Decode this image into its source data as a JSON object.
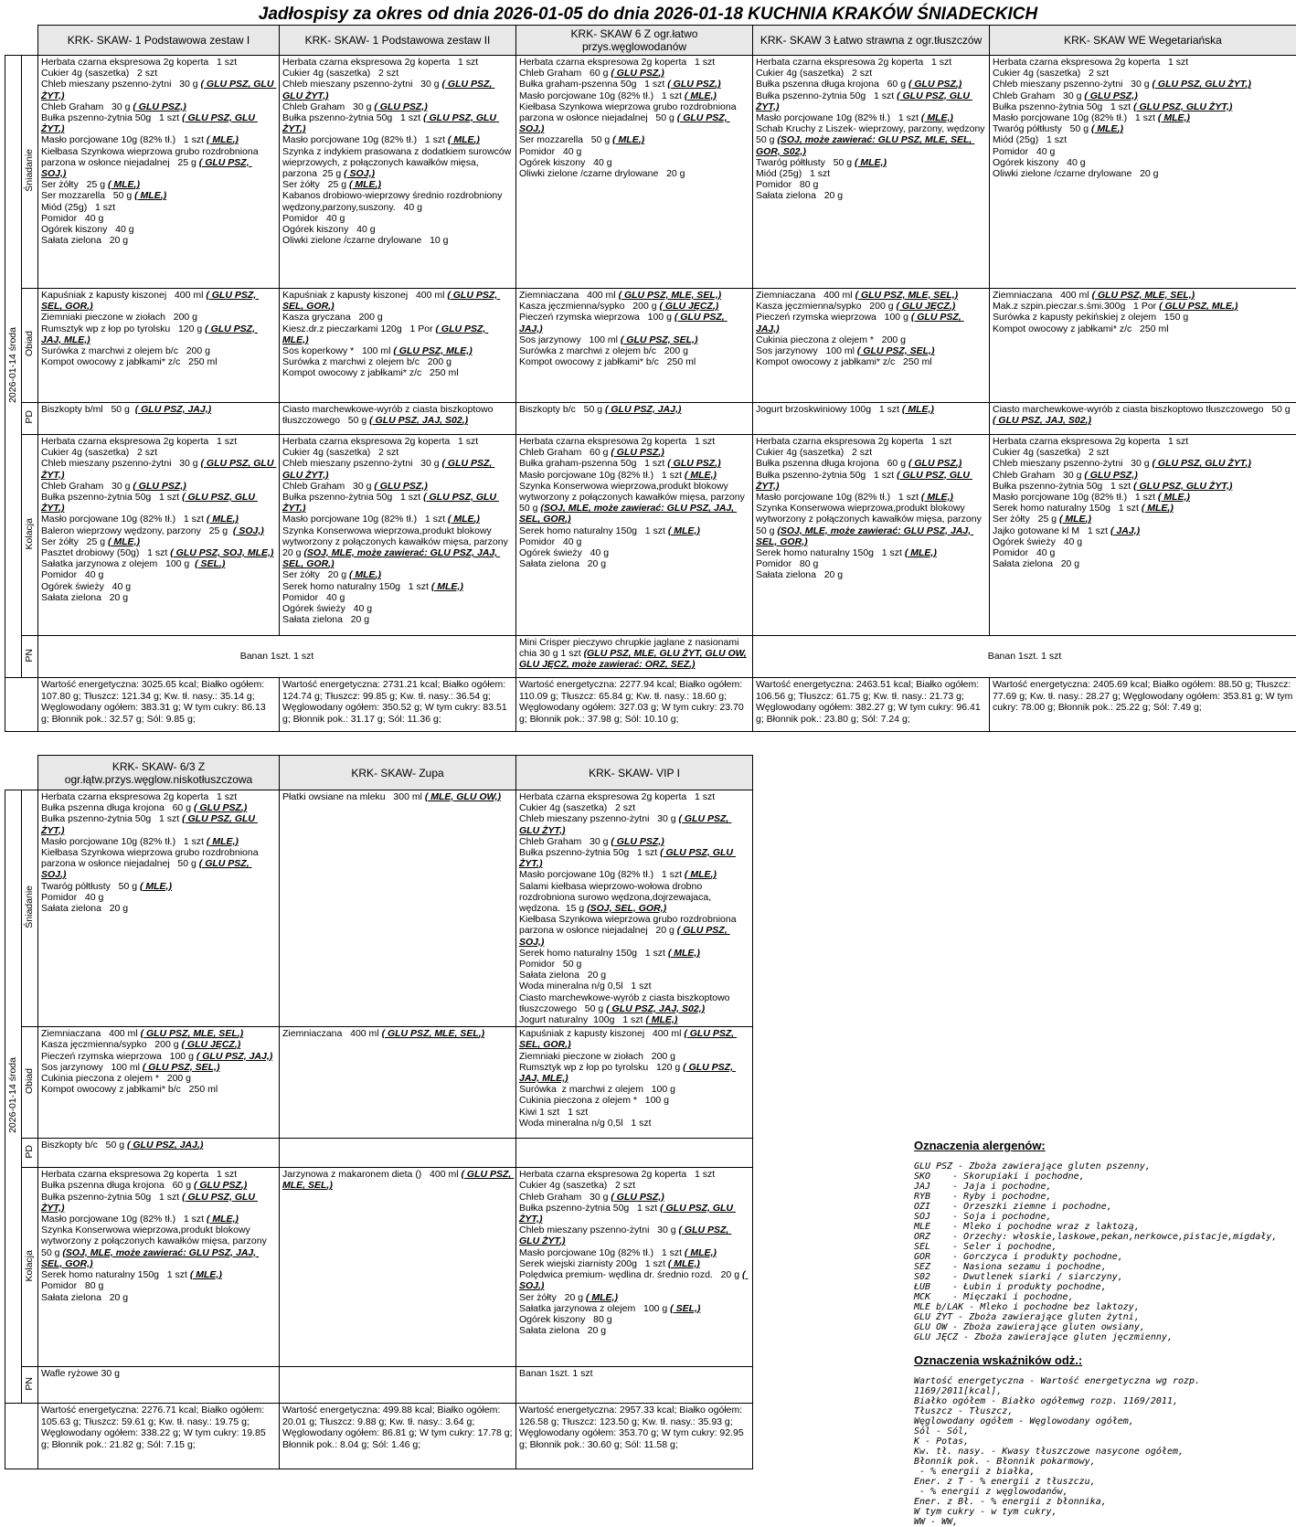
{
  "title": "Jadłospisy  za okres od dnia 2026-01-05 do dnia 2026-01-18 KUCHNIA KRAKÓW ŚNIADECKICH",
  "date_label": "2026-01-14 środa",
  "meals": {
    "breakfast": "Śniadanie",
    "lunch": "Obiad",
    "pd": "PD",
    "dinner": "Kolacja",
    "pn": "PN"
  },
  "table1": {
    "headers": [
      "KRK- SKAW- 1 Podstawowa zestaw I",
      "KRK- SKAW- 1 Podstawowa zestaw II",
      "KRK- SKAW 6 Z ogr.łatwo przys.węglowodanów",
      "KRK- SKAW 3 Łatwo strawna z ogr.tłuszczów",
      "KRK- SKAW WE Wegetariańska"
    ],
    "breakfast": [
      [
        "Herbata czarna ekspresowa 2g koperta   1 szt",
        "Cukier 4g (saszetka)   2 szt",
        "Chleb mieszany pszenno-żytni   30 g ( GLU PSZ, GLU ŻYT,)",
        "Chleb Graham   30 g ( GLU PSZ,)",
        "Bułka pszenno-żytnia 50g   1 szt ( GLU PSZ, GLU ŻYT,)",
        "Masło porcjowane 10g (82% tł.)   1 szt ( MLE,)",
        "Kiełbasa Szynkowa wieprzowa grubo rozdrobniona parzona w osłonce niejadalnej   25 g ( GLU PSZ, SOJ,)",
        "Ser żółty   25 g ( MLE,)",
        "Ser mozzarella   50 g ( MLE,)",
        "Miód (25g)   1 szt",
        "Pomidor   40 g",
        "Ogórek kiszony   40 g",
        "Sałata zielona   20 g"
      ],
      [
        "Herbata czarna ekspresowa 2g koperta   1 szt",
        "Cukier 4g (saszetka)   2 szt",
        "Chleb mieszany pszenno-żytni   30 g ( GLU PSZ, GLU ŻYT,)",
        "Chleb Graham   30 g ( GLU PSZ,)",
        "Bułka pszenno-żytnia 50g   1 szt ( GLU PSZ, GLU ŻYT,)",
        "Masło porcjowane 10g (82% tł.)   1 szt ( MLE,)",
        "Szynka z indykiem prasowana z dodatkiem surowców wieprzowych, z połączonych kawałków mięsa, parzona  25 g ( SOJ,)",
        "Ser żółty   25 g ( MLE,)",
        "Kabanos drobiowo-wieprzowy średnio rozdrobniony wędzony,parzony,suszony.   40 g",
        "Pomidor   40 g",
        "Ogórek kiszony   40 g",
        "Oliwki zielone /czarne drylowane   10 g"
      ],
      [
        "Herbata czarna ekspresowa 2g koperta   1 szt",
        "Chleb Graham   60 g ( GLU PSZ,)",
        "Bułka graham-pszenna 50g   1 szt ( GLU PSZ,)",
        "Masło porcjowane 10g (82% tł.)   1 szt ( MLE,)",
        "Kiełbasa Szynkowa wieprzowa grubo rozdrobniona parzona w osłonce niejadalnej   50 g ( GLU PSZ, SOJ,)",
        "Ser mozzarella   50 g ( MLE,)",
        "Pomidor   40 g",
        "Ogórek kiszony   40 g",
        "Oliwki zielone /czarne drylowane   20 g"
      ],
      [
        "Herbata czarna ekspresowa 2g koperta   1 szt",
        "Cukier 4g (saszetka)   2 szt",
        "Bułka pszenna długa krojona   60 g ( GLU PSZ,)",
        "Bułka pszenno-żytnia 50g   1 szt ( GLU PSZ, GLU ŻYT,)",
        "Masło porcjowane 10g (82% tł.)   1 szt ( MLE,)",
        "Schab Kruchy z Liszek- wieprzowy, parzony, wędzony  50 g (SOJ, może zawierać: GLU PSZ, MLE, SEL, GOR, S02,)",
        "Twaróg półtłusty   50 g ( MLE,)",
        "Miód (25g)   1 szt",
        "Pomidor   80 g",
        "Sałata zielona   20 g"
      ],
      [
        "Herbata czarna ekspresowa 2g koperta   1 szt",
        "Cukier 4g (saszetka)   2 szt",
        "Chleb mieszany pszenno-żytni   30 g ( GLU PSZ, GLU ŻYT,)",
        "Chleb Graham   30 g ( GLU PSZ,)",
        "Bułka pszenno-żytnia 50g   1 szt ( GLU PSZ, GLU ŻYT,)",
        "Masło porcjowane 10g (82% tł.)   1 szt ( MLE,)",
        "Twaróg półtłusty   50 g ( MLE,)",
        "Miód (25g)   1 szt",
        "Pomidor   40 g",
        "Ogórek kiszony   40 g",
        "Oliwki zielone /czarne drylowane   20 g"
      ]
    ],
    "lunch": [
      [
        "Kapuśniak z kapusty kiszonej   400 ml ( GLU PSZ, SEL, GOR,)",
        "Ziemniaki pieczone w ziołach   200 g",
        "Rumsztyk wp z łop po tyrolsku   120 g ( GLU PSZ, JAJ, MLE,)",
        "Surówka z marchwi z olejem b/c   200 g",
        "Kompot owocowy z jabłkami* z/c   250 ml"
      ],
      [
        "Kapuśniak z kapusty kiszonej   400 ml ( GLU PSZ, SEL, GOR,)",
        "Kasza gryczana   200 g",
        "Kiesz.dr.z pieczarkami 120g   1 Por ( GLU PSZ, MLE,)",
        "Sos koperkowy *   100 ml ( GLU PSZ, MLE,)",
        "Surówka z marchwi z olejem b/c   200 g",
        "Kompot owocowy z jabłkami* z/c   250 ml"
      ],
      [
        "Ziemniaczana   400 ml ( GLU PSZ, MLE, SEL,)",
        "Kasza jęczmienna/sypko   200 g ( GLU JĘCZ,)",
        "Pieczeń rzymska wieprzowa   100 g ( GLU PSZ, JAJ,)",
        "Sos jarzynowy   100 ml ( GLU PSZ, SEL,)",
        "Surówka z marchwi z olejem b/c   200 g",
        "Kompot owocowy z jabłkami* b/c   250 ml"
      ],
      [
        "Ziemniaczana   400 ml ( GLU PSZ, MLE, SEL,)",
        "Kasza jęczmienna/sypko   200 g ( GLU JĘCZ,)",
        "Pieczeń rzymska wieprzowa   100 g ( GLU PSZ, JAJ,)",
        "Cukinia pieczona z olejem *   200 g",
        "Sos jarzynowy   100 ml ( GLU PSZ, SEL,)",
        "Kompot owocowy z jabłkami* z/c   250 ml"
      ],
      [
        "Ziemniaczana   400 ml ( GLU PSZ, MLE, SEL,)",
        "Mak.z szpin.pieczar.s.śmi.300g   1 Por ( GLU PSZ, MLE,)",
        "Surówka z kapusty pekińskiej z olejem   150 g",
        "Kompot owocowy z jabłkami* z/c   250 ml"
      ]
    ],
    "pd": [
      [
        "Biszkopty b/ml   50 g  ( GLU PSZ, JAJ,)"
      ],
      [
        "Ciasto marchewkowe-wyrób z ciasta biszkoptowo tłuszczowego   50 g ( GLU PSZ, JAJ, S02,)"
      ],
      [
        "Biszkopty b/c   50 g ( GLU PSZ, JAJ,)"
      ],
      [
        "Jogurt brzoskwiniowy 100g   1 szt ( MLE,)"
      ],
      [
        "Ciasto marchewkowe-wyrób z ciasta biszkoptowo tłuszczowego   50 g ( GLU PSZ, JAJ, S02,)"
      ]
    ],
    "dinner": [
      [
        "Herbata czarna ekspresowa 2g koperta   1 szt",
        "Cukier 4g (saszetka)   2 szt",
        "Chleb mieszany pszenno-żytni   30 g ( GLU PSZ, GLU ŻYT,)",
        "Chleb Graham   30 g ( GLU PSZ,)",
        "Bułka pszenno-żytnia 50g   1 szt ( GLU PSZ, GLU ŻYT,)",
        "Masło porcjowane 10g (82% tł.)   1 szt ( MLE,)",
        "Baleron wieprzowy wędzony, parzony   25 g  ( SOJ,)",
        "Ser żółty   25 g ( MLE,)",
        "Pasztet drobiowy (50g)   1 szt ( GLU PSZ, SOJ, MLE,)",
        "Sałatka jarzynowa z olejem   100 g  ( SEL,)",
        "Pomidor   40 g",
        "Ogórek świeży   40 g",
        "Sałata zielona   20 g"
      ],
      [
        "Herbata czarna ekspresowa 2g koperta   1 szt",
        "Cukier 4g (saszetka)   2 szt",
        "Chleb mieszany pszenno-żytni   30 g ( GLU PSZ, GLU ŻYT,)",
        "Chleb Graham   30 g ( GLU PSZ,)",
        "Bułka pszenno-żytnia 50g   1 szt ( GLU PSZ, GLU ŻYT,)",
        "Masło porcjowane 10g (82% tł.)   1 szt ( MLE,)",
        "Szynka Konserwowa wieprzowa,produkt blokowy wytworzony z połączonych kawałków mięsa, parzony 20 g (SOJ, MLE, może zawierać: GLU PSZ, JAJ, SEL, GOR,)",
        "Ser żółty   20 g ( MLE,)",
        "Serek homo naturalny 150g   1 szt ( MLE,)",
        "Pomidor   40 g",
        "Ogórek świeży   40 g",
        "Sałata zielona   20 g"
      ],
      [
        "Herbata czarna ekspresowa 2g koperta   1 szt",
        "Chleb Graham   60 g ( GLU PSZ,)",
        "Bułka graham-pszenna 50g   1 szt ( GLU PSZ,)",
        "Masło porcjowane 10g (82% tł.)   1 szt ( MLE,)",
        "Szynka Konserwowa wieprzowa,produkt blokowy wytworzony z połączonych kawałków mięsa, parzony 50 g (SOJ, MLE, może zawierać: GLU PSZ, JAJ, SEL, GOR,)",
        "Serek homo naturalny 150g   1 szt ( MLE,)",
        "Pomidor   40 g",
        "Ogórek świeży   40 g",
        "Sałata zielona   20 g"
      ],
      [
        "Herbata czarna ekspresowa 2g koperta   1 szt",
        "Cukier 4g (saszetka)   2 szt",
        "Bułka pszenna długa krojona   60 g ( GLU PSZ,)",
        "Bułka pszenno-żytnia 50g   1 szt ( GLU PSZ, GLU ŻYT,)",
        "Masło porcjowane 10g (82% tł.)   1 szt ( MLE,)",
        "Szynka Konserwowa wieprzowa,produkt blokowy wytworzony z połączonych kawałków mięsa, parzony 50 g (SOJ, MLE, może zawierać: GLU PSZ, JAJ, SEL, GOR,)",
        "Serek homo naturalny 150g   1 szt ( MLE,)",
        "Pomidor   80 g",
        "Sałata zielona   20 g"
      ],
      [
        "Herbata czarna ekspresowa 2g koperta   1 szt",
        "Cukier 4g (saszetka)   2 szt",
        "Chleb mieszany pszenno-żytni   30 g ( GLU PSZ, GLU ŻYT,)",
        "Chleb Graham   30 g ( GLU PSZ,)",
        "Bułka pszenno-żytnia 50g   1 szt ( GLU PSZ, GLU ŻYT,)",
        "Masło porcjowane 10g (82% tł.)   1 szt ( MLE,)",
        "Serek homo naturalny 150g   1 szt ( MLE,)",
        "Ser żółty   25 g ( MLE,)",
        "Jajko gotowane kl M   1 szt ( JAJ,)",
        "Ogórek świeży   40 g",
        "Pomidor   40 g",
        "Sałata zielona   20 g"
      ]
    ],
    "pn": {
      "left": "Banan 1szt.   1 szt",
      "middle": "Mini Crisper pieczywo chrupkie jaglane z nasionami chia 30 g   1 szt (GLU PSZ, MLE, GLU ŻYT, GLU OW, GLU JĘCZ, może zawierać: ORZ, SEZ,)",
      "right": "Banan 1szt.   1 szt"
    },
    "energy": [
      "Wartość energetyczna: 3025.65 kcal; Białko ogółem: 107.80 g; Tłuszcz: 121.34 g; Kw. tł. nasy.: 35.14 g; Węglowodany ogółem: 383.31 g; W tym cukry: 86.13 g; Błonnik pok.: 32.57 g; Sól: 9.85 g;",
      "Wartość energetyczna: 2731.21 kcal; Białko ogółem: 124.74 g; Tłuszcz: 99.85 g; Kw. tł. nasy.: 36.54 g; Węglowodany ogółem: 350.52 g; W tym cukry: 83.51 g; Błonnik pok.: 31.17 g; Sól: 11.36 g;",
      "Wartość energetyczna: 2277.94 kcal; Białko ogółem: 110.09 g; Tłuszcz: 65.84 g; Kw. tł. nasy.: 18.60 g; Węglowodany ogółem: 327.03 g; W tym cukry: 23.70 g; Błonnik pok.: 37.98 g; Sól: 10.10 g;",
      "Wartość energetyczna: 2463.51 kcal; Białko ogółem: 106.56 g; Tłuszcz: 61.75 g; Kw. tł. nasy.: 21.73 g; Węglowodany ogółem: 382.27 g; W tym cukry: 96.41 g; Błonnik pok.: 23.80 g; Sól: 7.24 g;",
      "Wartość energetyczna: 2405.69 kcal; Białko ogółem: 88.50 g; Tłuszcz: 77.69 g; Kw. tł. nasy.: 28.27 g; Węglowodany ogółem: 353.81 g; W tym cukry: 78.00 g; Błonnik pok.: 25.22 g; Sól: 7.49 g;"
    ]
  },
  "table2": {
    "headers": [
      "KRK- SKAW- 6/3 Z\nogr.łątw.przys.węglow.niskotłuszczowa",
      "KRK- SKAW- Zupa",
      "KRK- SKAW- VIP I"
    ],
    "breakfast": [
      [
        "Herbata czarna ekspresowa 2g koperta   1 szt",
        "Bułka pszenna długa krojona   60 g ( GLU PSZ,)",
        "Bułka pszenno-żytnia 50g   1 szt ( GLU PSZ, GLU ŻYT,)",
        "Masło porcjowane 10g (82% tł.)   1 szt ( MLE,)",
        "Kiełbasa Szynkowa wieprzowa grubo rozdrobniona parzona w osłonce niejadalnej   50 g ( GLU PSZ, SOJ,)",
        "Twaróg półtłusty   50 g ( MLE,)",
        "Pomidor   40 g",
        "Sałata zielona   20 g"
      ],
      [
        "Płatki owsiane na mleku   300 ml ( MLE, GLU OW,)"
      ],
      [
        "Herbata czarna ekspresowa 2g koperta   1 szt",
        "Cukier 4g (saszetka)   2 szt",
        "Chleb mieszany pszenno-żytni   30 g ( GLU PSZ, GLU ŻYT,)",
        "Chleb Graham   30 g ( GLU PSZ,)",
        "Bułka pszenno-żytnia 50g   1 szt ( GLU PSZ, GLU ŻYT,)",
        "Masło porcjowane 10g (82% tł.)   1 szt ( MLE,)",
        "Salami kiełbasa wieprzowo-wołowa drobno rozdrobniona surowo wędzona,dojrzewajaca, wędzona.  15 g (SOJ, SEL, GOR,)",
        "Kiełbasa Szynkowa wieprzowa grubo rozdrobniona parzona w osłonce niejadalnej   20 g ( GLU PSZ, SOJ,)",
        "Serek homo naturalny 150g   1 szt ( MLE,)",
        "Pomidor   50 g",
        "Sałata zielona   20 g",
        "Woda mineralna n/g 0,5l   1 szt",
        "Ciasto marchewkowe-wyrób z ciasta biszkoptowo tłuszczowego   50 g ( GLU PSZ, JAJ, S02,)",
        "Jogurt naturalny  100g   1 szt ( MLE,)"
      ]
    ],
    "lunch": [
      [
        "Ziemniaczana   400 ml ( GLU PSZ, MLE, SEL,)",
        "Kasza jęczmienna/sypko   200 g ( GLU JĘCZ,)",
        "Pieczeń rzymska wieprzowa   100 g ( GLU PSZ, JAJ,)",
        "Sos jarzynowy   100 ml ( GLU PSZ, SEL,)",
        "Cukinia pieczona z olejem *   200 g",
        "Kompot owocowy z jabłkami* b/c   250 ml"
      ],
      [
        "Ziemniaczana   400 ml ( GLU PSZ, MLE, SEL,)"
      ],
      [
        "Kapuśniak z kapusty kiszonej   400 ml ( GLU PSZ, SEL, GOR,)",
        "Ziemniaki pieczone w ziołach   200 g",
        "Rumsztyk wp z łop po tyrolsku   120 g ( GLU PSZ, JAJ, MLE,)",
        "Surówka  z marchwi z olejem   100 g",
        "Cukinia pieczona z olejem *   100 g",
        "Kiwi 1 szt   1 szt",
        "Woda mineralna n/g 0,5l   1 szt"
      ]
    ],
    "pd": [
      [
        "Biszkopty b/c   50 g ( GLU PSZ, JAJ,)"
      ],
      [],
      []
    ],
    "dinner": [
      [
        "Herbata czarna ekspresowa 2g koperta   1 szt",
        "Bułka pszenna długa krojona   60 g ( GLU PSZ,)",
        "Bułka pszenno-żytnia 50g   1 szt ( GLU PSZ, GLU ŻYT,)",
        "Masło porcjowane 10g (82% tł.)   1 szt ( MLE,)",
        "Szynka Konserwowa wieprzowa,produkt blokowy wytworzony z połączonych kawałków mięsa, parzony 50 g (SOJ, MLE, może zawierać: GLU PSZ, JAJ, SEL, GOR,)",
        "Serek homo naturalny 150g   1 szt ( MLE,)",
        "Pomidor   80 g",
        "Sałata zielona   20 g"
      ],
      [
        "Jarzynowa z makaronem dieta ()   400 ml ( GLU PSZ, MLE, SEL,)"
      ],
      [
        "Herbata czarna ekspresowa 2g koperta   1 szt",
        "Cukier 4g (saszetka)   2 szt",
        "Chleb Graham   30 g ( GLU PSZ,)",
        "Bułka pszenno-żytnia 50g   1 szt ( GLU PSZ, GLU ŻYT,)",
        "Chleb mieszany pszenno-żytni   30 g ( GLU PSZ, GLU ŻYT,)",
        "Masło porcjowane 10g (82% tł.)   1 szt ( MLE,)",
        "Serek wiejski ziarnisty 200g   1 szt ( MLE,)",
        "Polędwica premium- wędlina dr. średnio rozd.   20 g ( SOJ,)",
        "Ser żółty   20 g ( MLE,)",
        "Sałatka jarzynowa z olejem   100 g ( SEL,)",
        "Ogórek kiszony   80 g",
        "Sałata zielona   20 g"
      ]
    ],
    "pn": [
      "Wafle ryżowe   30 g",
      "",
      "Banan 1szt.   1 szt"
    ],
    "energy": [
      "Wartość energetyczna: 2276.71 kcal; Białko ogółem: 105.63 g; Tłuszcz: 59.61 g; Kw. tł. nasy.: 19.75 g; Węglowodany ogółem: 338.22 g; W tym cukry: 19.85 g; Błonnik pok.: 21.82 g; Sól: 7.15 g;",
      "Wartość energetyczna: 499.88 kcal; Białko ogółem: 20.01 g; Tłuszcz: 9.88 g; Kw. tł. nasy.: 3.64 g; Węglowodany ogółem: 86.81 g; W tym cukry: 17.78 g; Błonnik pok.: 8.04 g; Sól: 1.46 g;",
      "Wartość energetyczna: 2957.33 kcal; Białko ogółem: 126.58 g; Tłuszcz: 123.50 g; Kw. tł. nasy.: 35.93 g; Węglowodany ogółem: 353.70 g; W tym cukry: 92.95 g; Błonnik pok.: 30.60 g; Sól: 11.58 g;"
    ]
  },
  "legend": {
    "allergens_title": "Oznaczenia alergenów:",
    "allergens": [
      "GLU PSZ - Zboża zawierające gluten pszenny,",
      "SKO    - Skorupiaki i pochodne,",
      "JAJ    - Jaja i pochodne,",
      "RYB    - Ryby i pochodne,",
      "OZI    - Orzeszki ziemne i pochodne,",
      "SOJ    - Soja i pochodne,",
      "MLE    - Mleko i pochodne wraz z laktozą,",
      "ORZ    - Orzechy: włoskie,laskowe,pekan,nerkowce,pistacje,migdały,",
      "SEL    - Seler i pochodne,",
      "GOR    - Gorczyca i produkty pochodne,",
      "SEZ    - Nasiona sezamu i pochodne,",
      "S02    - Dwutlenek siarki / siarczyny,",
      "ŁUB    - Łubin i produkty pochodne,",
      "MCK    - Mięczaki i pochodne,",
      "MLE b/LAK - Mleko i pochodne bez laktozy,",
      "GLU ŻYT - Zboża zawierające gluten żytni,",
      "GLU OW - Zboża zawierające gluten owsiany,",
      "GLU JĘCZ - Zboża zawierające gluten jęczmienny,"
    ],
    "indicators_title": "Oznaczenia wskaźników odż.:",
    "indicators": [
      "Wartość energetyczna - Wartość energetyczna wg rozp. 1169/2011[kcal],",
      "Białko ogółem - Białko ogółemwg rozp. 1169/2011,",
      "Tłuszcz - Tłuszcz,",
      "Węglowodany ogółem - Węglowodany ogółem,",
      "Sól - Sól,",
      "K - Potas,",
      "Kw. tł. nasy. - Kwasy tłuszczowe nasycone ogółem,",
      "Błonnik pok. - Błonnik pokarmowy,",
      " - % energii z białka,",
      "Ener. z T - % energii z tłuszczu,",
      " - % energii z węglowodanów,",
      "Ener. z Bł. - % energii z błonnika,",
      "W tym cukry - w tym cukry,",
      "WW - WW,"
    ]
  }
}
